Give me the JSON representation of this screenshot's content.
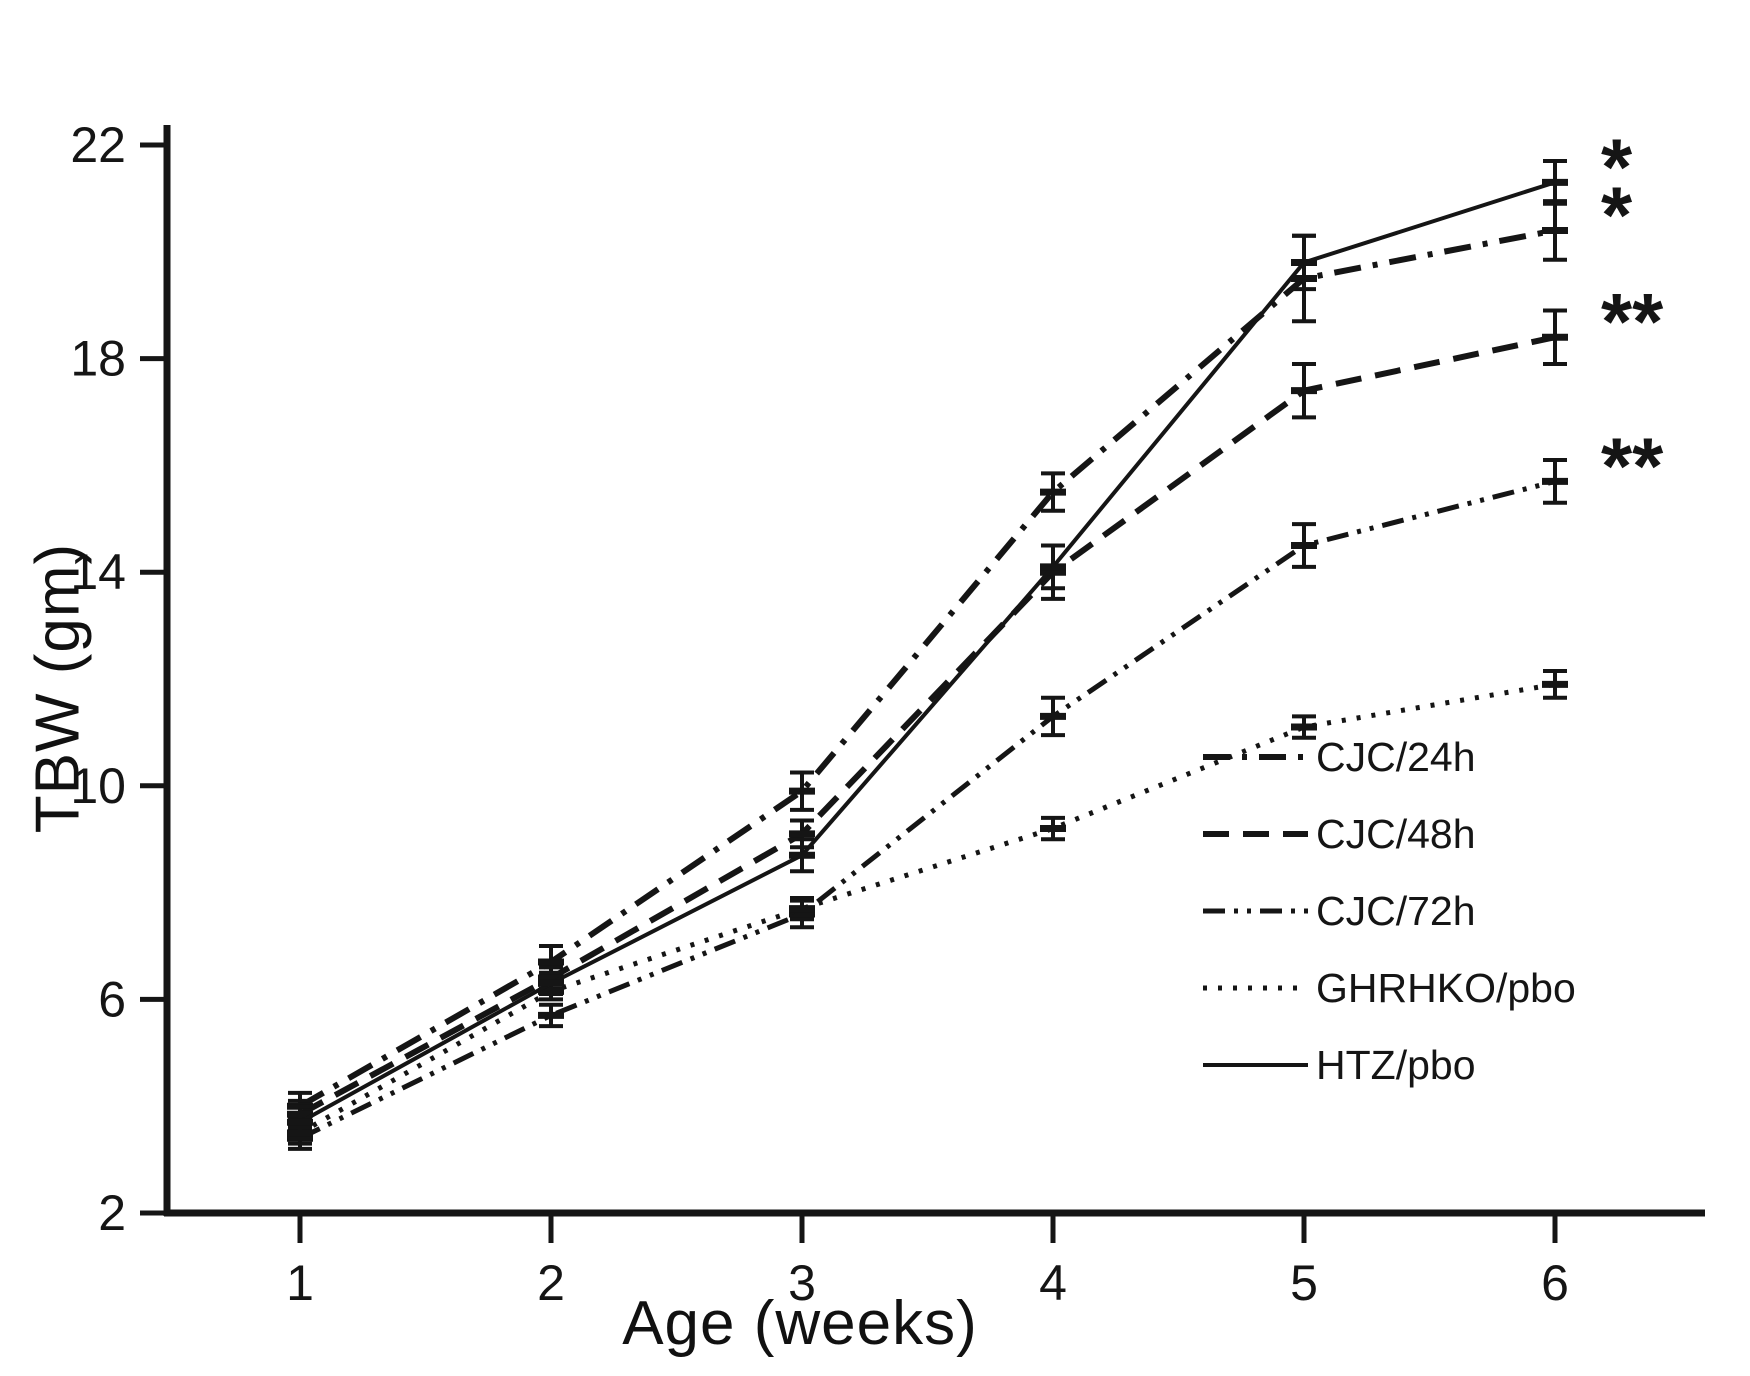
{
  "figure_title": "",
  "chart_data": {
    "type": "line",
    "title": "",
    "xlabel": "Age (weeks)",
    "ylabel": "TBW (gm)",
    "x": [
      1,
      2,
      3,
      4,
      5,
      6
    ],
    "xticks": [
      1,
      2,
      3,
      4,
      5,
      6
    ],
    "yticks": [
      2,
      6,
      10,
      14,
      18,
      22
    ],
    "ylim": [
      2,
      22
    ],
    "xlim": [
      0.4,
      6.6
    ],
    "grid": false,
    "legend_position": "lower-right",
    "color": "#151515",
    "series": [
      {
        "name": "CJC/24h",
        "line_style": "dash-dot",
        "values": [
          4.0,
          6.7,
          9.9,
          15.5,
          19.5,
          20.4
        ],
        "errors": [
          0.25,
          0.3,
          0.35,
          0.35,
          0.8,
          0.55
        ],
        "annotation": "*"
      },
      {
        "name": "CJC/48h",
        "line_style": "dashed",
        "values": [
          3.85,
          6.4,
          9.1,
          14.0,
          17.4,
          18.4
        ],
        "errors": [
          0.25,
          0.2,
          0.25,
          0.5,
          0.5,
          0.5
        ],
        "annotation": "**"
      },
      {
        "name": "CJC/72h",
        "line_style": "dash-dot-dot",
        "values": [
          3.4,
          5.7,
          7.6,
          11.3,
          14.5,
          15.7
        ],
        "errors": [
          0.2,
          0.2,
          0.25,
          0.35,
          0.4,
          0.4
        ],
        "annotation": "**"
      },
      {
        "name": "GHRHKO/pbo",
        "line_style": "dotted",
        "values": [
          3.5,
          6.15,
          7.7,
          9.2,
          11.1,
          11.9
        ],
        "errors": [
          0.2,
          0.15,
          0.2,
          0.2,
          0.2,
          0.25
        ],
        "annotation": ""
      },
      {
        "name": "HTZ/pbo",
        "line_style": "solid",
        "values": [
          3.7,
          6.3,
          8.7,
          14.1,
          19.8,
          21.3
        ],
        "errors": [
          0.3,
          0.2,
          0.3,
          0.4,
          0.5,
          0.4
        ],
        "annotation": "*"
      }
    ]
  }
}
